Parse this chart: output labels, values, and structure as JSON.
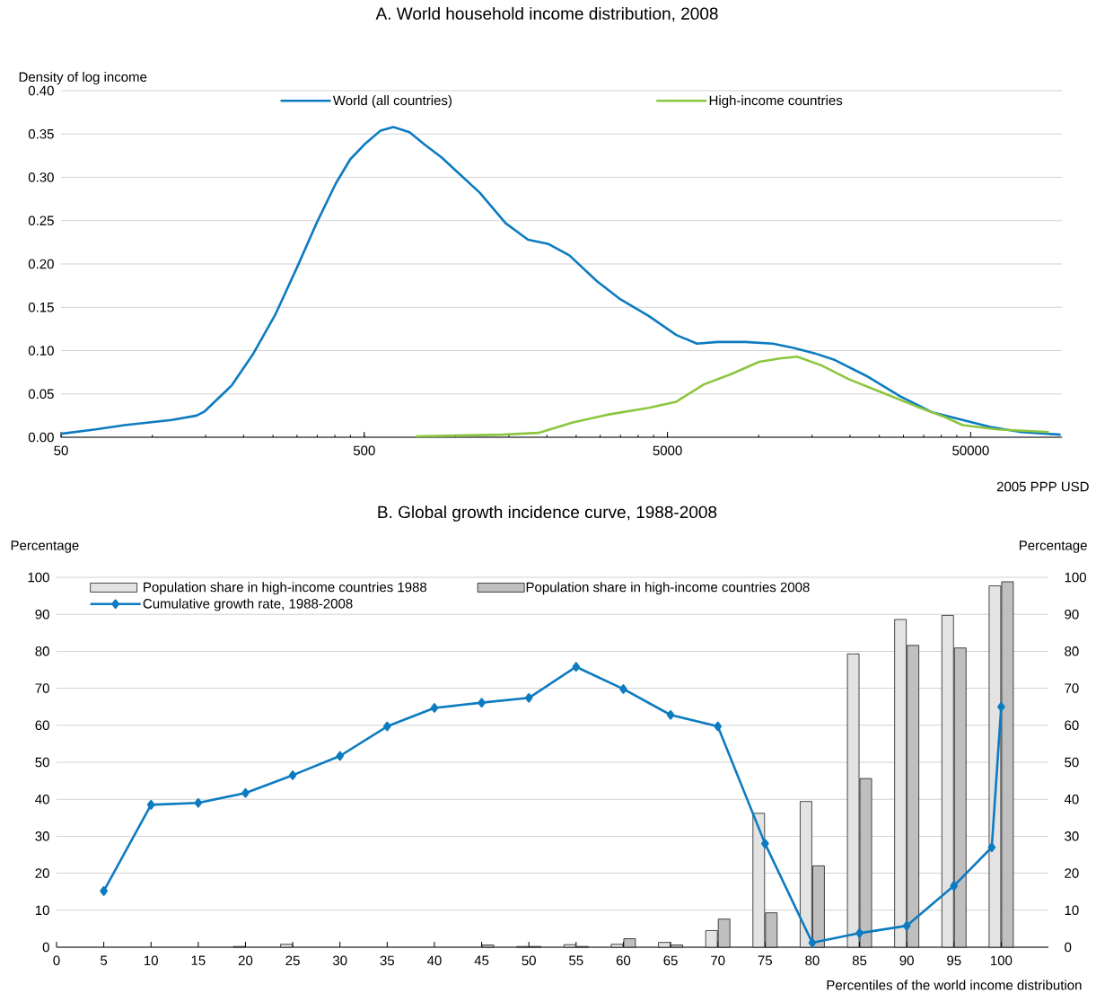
{
  "chart_data": [
    {
      "type": "line",
      "title": "A. World household income distribution, 2008",
      "ylabel": "Density of log income",
      "xlabel": "2005 PPP USD",
      "log": "x",
      "grid": "y",
      "legend": "top",
      "xlim": [
        50,
        100000
      ],
      "xticks": [
        50,
        500,
        5000,
        50000
      ],
      "ylim": [
        0,
        0.4
      ],
      "yticks": [
        {
          "value": 0,
          "label": "0.00"
        },
        {
          "value": 0.05,
          "label": "0.05"
        },
        {
          "value": 0.1,
          "label": "0.10"
        },
        {
          "value": 0.15,
          "label": "0.15"
        },
        {
          "value": 0.2,
          "label": "0.20"
        },
        {
          "value": 0.25,
          "label": "0.25"
        },
        {
          "value": 0.3,
          "label": "0.30"
        },
        {
          "value": 0.35,
          "label": "0.35"
        },
        {
          "value": 0.4,
          "label": "0.40"
        }
      ],
      "series": [
        {
          "name": "World (all countries)",
          "color": "#0c7bc0",
          "x": [
            50,
            65,
            81,
            116,
            140,
            149,
            183,
            214,
            254,
            301,
            348,
            403,
            450,
            501,
            566,
            624,
            705,
            796,
            899,
            1015,
            1204,
            1463,
            1735,
            2028,
            2373,
            2928,
            3470,
            4335,
            5347,
            6256,
            7323,
            9032,
            11131,
            13032,
            15252,
            17852,
            22594,
            29345,
            37163,
            48290,
            57995,
            73466,
            99000
          ],
          "values": [
            0.004,
            0.009,
            0.014,
            0.02,
            0.025,
            0.03,
            0.06,
            0.095,
            0.141,
            0.197,
            0.247,
            0.293,
            0.321,
            0.338,
            0.354,
            0.358,
            0.352,
            0.337,
            0.323,
            0.306,
            0.282,
            0.247,
            0.228,
            0.223,
            0.21,
            0.18,
            0.16,
            0.14,
            0.118,
            0.108,
            0.11,
            0.11,
            0.108,
            0.103,
            0.097,
            0.089,
            0.071,
            0.047,
            0.029,
            0.019,
            0.012,
            0.006,
            0.003
          ]
        },
        {
          "name": "High-income countries",
          "color": "#8cc63f",
          "x": [
            740,
            1428,
            1875,
            2437,
            3166,
            4335,
            5347,
            6595,
            8133,
            10032,
            11732,
            13382,
            16074,
            19824,
            25748,
            33470,
            41256,
            47062,
            61144,
            90568
          ],
          "values": [
            0.001,
            0.003,
            0.005,
            0.017,
            0.026,
            0.034,
            0.041,
            0.061,
            0.073,
            0.087,
            0.091,
            0.093,
            0.083,
            0.067,
            0.051,
            0.035,
            0.023,
            0.014,
            0.009,
            0.006
          ]
        }
      ]
    },
    {
      "type": "bar",
      "title": "B. Global growth incidence curve, 1988-2008",
      "ylabel": "Percentage",
      "y2label": "Percentage",
      "xlabel": "Percentiles of the world income distribution",
      "grid": "y",
      "legend": "top left",
      "xlim": [
        0,
        105
      ],
      "xticks": [
        0,
        5,
        10,
        15,
        20,
        25,
        30,
        35,
        40,
        45,
        50,
        55,
        60,
        65,
        70,
        75,
        80,
        85,
        90,
        95,
        100
      ],
      "ylim": [
        0,
        100
      ],
      "yticks": [
        0,
        10,
        20,
        30,
        40,
        50,
        60,
        70,
        80,
        90,
        100
      ],
      "y2lim": [
        0,
        100
      ],
      "y2ticks": [
        0,
        10,
        20,
        30,
        40,
        50,
        60,
        70,
        80,
        90,
        100
      ],
      "series": [
        {
          "name": "Population share in high-income countries 1988",
          "color": "#e3e3e3",
          "x": [
            20,
            25,
            50,
            55,
            60,
            65,
            70,
            75,
            80,
            85,
            90,
            95,
            100
          ],
          "values": [
            0.2,
            0.8,
            0.2,
            0.7,
            0.8,
            1.3,
            4.5,
            36.2,
            39.4,
            79.3,
            88.6,
            89.7,
            97.7
          ]
        },
        {
          "name": "Population share in high-income countries 2008",
          "color": "#bfbfbf",
          "x": [
            45,
            50,
            55,
            60,
            65,
            70,
            75,
            80,
            85,
            90,
            95,
            100
          ],
          "values": [
            0.6,
            0.2,
            0.2,
            2.3,
            0.6,
            7.6,
            9.3,
            22.0,
            45.6,
            81.6,
            80.9,
            98.8
          ]
        },
        {
          "name": "Cumulative growth rate, 1988-2008",
          "type": "line",
          "marker": "diamond",
          "color": "#0c7bc0",
          "x": [
            5,
            10,
            15,
            20,
            25,
            30,
            35,
            40,
            45,
            50,
            55,
            60,
            65,
            70,
            75,
            80,
            85,
            90,
            95,
            99,
            100
          ],
          "values": [
            15.2,
            38.5,
            39.0,
            41.7,
            46.5,
            51.7,
            59.7,
            64.7,
            66.1,
            67.4,
            75.8,
            69.8,
            62.8,
            59.7,
            28.0,
            1.2,
            3.8,
            5.8,
            16.6,
            27.0,
            65.0
          ]
        }
      ]
    }
  ]
}
